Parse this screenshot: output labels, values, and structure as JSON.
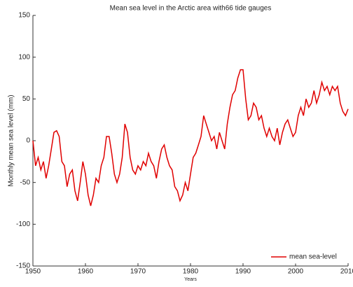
{
  "chart_data": {
    "type": "line",
    "title": "Mean sea level in the Arctic area with66 tide gauges",
    "x_label": "Years",
    "y_label": "Monthly mean sea level (mm)",
    "x": [
      1950,
      1950.5,
      1951,
      1951.5,
      1952,
      1952.5,
      1953,
      1953.5,
      1954,
      1954.5,
      1955,
      1955.5,
      1956,
      1956.5,
      1957,
      1957.5,
      1958,
      1958.5,
      1959,
      1959.5,
      1960,
      1960.5,
      1961,
      1961.5,
      1962,
      1962.5,
      1963,
      1963.5,
      1964,
      1964.5,
      1965,
      1965.5,
      1966,
      1966.5,
      1967,
      1967.5,
      1968,
      1968.5,
      1969,
      1969.5,
      1970,
      1970.5,
      1971,
      1971.5,
      1972,
      1972.5,
      1973,
      1973.5,
      1974,
      1974.5,
      1975,
      1975.5,
      1976,
      1976.5,
      1977,
      1977.5,
      1978,
      1978.5,
      1979,
      1979.5,
      1980,
      1980.5,
      1981,
      1981.5,
      1982,
      1982.5,
      1983,
      1983.5,
      1984,
      1984.5,
      1985,
      1985.5,
      1986,
      1986.5,
      1987,
      1987.5,
      1988,
      1988.5,
      1989,
      1989.5,
      1990,
      1990.5,
      1991,
      1991.5,
      1992,
      1992.5,
      1993,
      1993.5,
      1994,
      1994.5,
      1995,
      1995.5,
      1996,
      1996.5,
      1997,
      1997.5,
      1998,
      1998.5,
      1999,
      1999.5,
      2000,
      2000.5,
      2001,
      2001.5,
      2002,
      2002.5,
      2003,
      2003.5,
      2004,
      2004.5,
      2005,
      2005.5,
      2006,
      2006.5,
      2007,
      2007.5,
      2008,
      2008.5,
      2009,
      2009.5,
      2010
    ],
    "series": [
      {
        "name": "mean sea-level",
        "color": "#e00000",
        "values": [
          0,
          -30,
          -20,
          -35,
          -25,
          -45,
          -30,
          -10,
          10,
          12,
          5,
          -25,
          -30,
          -55,
          -40,
          -35,
          -60,
          -72,
          -50,
          -25,
          -40,
          -65,
          -78,
          -65,
          -45,
          -50,
          -30,
          -20,
          5,
          5,
          -15,
          -40,
          -50,
          -40,
          -20,
          20,
          10,
          -20,
          -35,
          -40,
          -30,
          -35,
          -25,
          -30,
          -15,
          -25,
          -30,
          -45,
          -25,
          -10,
          -5,
          -20,
          -30,
          -35,
          -55,
          -60,
          -72,
          -65,
          -50,
          -60,
          -40,
          -20,
          -15,
          -5,
          5,
          30,
          20,
          10,
          0,
          5,
          -10,
          10,
          0,
          -10,
          20,
          40,
          55,
          60,
          75,
          85,
          85,
          50,
          25,
          30,
          45,
          40,
          25,
          30,
          15,
          5,
          15,
          5,
          0,
          15,
          -5,
          10,
          20,
          25,
          15,
          5,
          10,
          30,
          40,
          30,
          50,
          40,
          45,
          60,
          45,
          55,
          70,
          60,
          65,
          55,
          65,
          60,
          65,
          45,
          35,
          30,
          38
        ]
      }
    ],
    "xlim": [
      1950,
      2010
    ],
    "xticks": [
      1950,
      1960,
      1970,
      1980,
      1990,
      2000,
      2010
    ],
    "ylim": [
      -150,
      150
    ],
    "yticks": [
      -150,
      -100,
      -50,
      0,
      50,
      100,
      150
    ],
    "legend": "lower right",
    "grid": false
  }
}
